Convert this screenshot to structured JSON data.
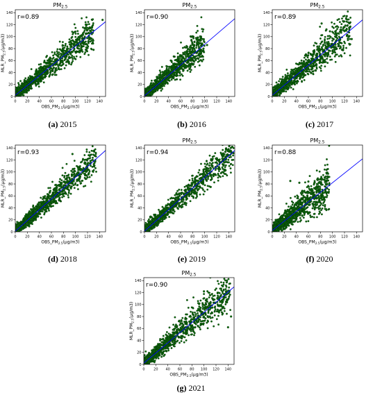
{
  "chart_data": [
    {
      "type": "scatter",
      "title": "PM2.5",
      "xlabel": "OBS_PM2.5(µg/m3)",
      "ylabel": "MLR_PM2.5(µg/m3)",
      "r_label": "r=0.89",
      "xlim": [
        0,
        150
      ],
      "ylim": [
        0,
        145
      ],
      "xticks": [
        0,
        20,
        40,
        60,
        80,
        100,
        120,
        140
      ],
      "yticks": [
        0,
        20,
        40,
        60,
        80,
        100,
        120,
        140
      ],
      "fit_line": {
        "slope": 0.82,
        "intercept": 2
      },
      "cloud": {
        "x_max": 130,
        "spread_low": 6,
        "spread_high": 22,
        "outliers": [
          [
            145,
            128
          ],
          [
            130,
            78
          ],
          [
            118,
            82
          ]
        ]
      },
      "caption_tag": "(a)",
      "caption_year": "2015",
      "point_color": "#0b6b0b",
      "line_color": "#0000ff"
    },
    {
      "type": "scatter",
      "title": "PM2.5",
      "xlabel": "OBS_PM2.5(µg/m3)",
      "ylabel": "MLR_PM2.5(µg/m3)",
      "r_label": "r=0.90",
      "xlim": [
        0,
        150
      ],
      "ylim": [
        0,
        145
      ],
      "xticks": [
        0,
        20,
        40,
        60,
        80,
        100,
        120,
        140
      ],
      "yticks": [
        0,
        20,
        40,
        60,
        80,
        100,
        120,
        140
      ],
      "fit_line": {
        "slope": 0.86,
        "intercept": 1
      },
      "cloud": {
        "x_max": 100,
        "spread_low": 5,
        "spread_high": 22,
        "outliers": [
          [
            104,
            86
          ],
          [
            98,
            80
          ]
        ]
      },
      "caption_tag": "(b)",
      "caption_year": "2016",
      "point_color": "#0b6b0b",
      "line_color": "#0000ff"
    },
    {
      "type": "scatter",
      "title": "PM2.5",
      "xlabel": "OBS_PM2.5(µg/m3)",
      "ylabel": "MLR_PM2.5(µg/m3)",
      "r_label": "r=0.89",
      "xlim": [
        0,
        150
      ],
      "ylim": [
        0,
        145
      ],
      "xticks": [
        0,
        20,
        40,
        60,
        80,
        100,
        120,
        140
      ],
      "yticks": [
        0,
        20,
        40,
        60,
        80,
        100,
        120,
        140
      ],
      "fit_line": {
        "slope": 0.84,
        "intercept": 2
      },
      "cloud": {
        "x_max": 130,
        "spread_low": 6,
        "spread_high": 24,
        "outliers": [
          [
            82,
            122
          ],
          [
            90,
            112
          ],
          [
            132,
            96
          ]
        ]
      },
      "caption_tag": "(c)",
      "caption_year": "2017",
      "point_color": "#0b6b0b",
      "line_color": "#0000ff"
    },
    {
      "type": "scatter",
      "title": "",
      "xlabel": "OBS_PM2.5(µg/m3)",
      "ylabel": "MLR_PM2.5(µg/m3)",
      "r_label": "r=0.93",
      "xlim": [
        0,
        150
      ],
      "ylim": [
        0,
        145
      ],
      "xticks": [
        0,
        20,
        40,
        60,
        80,
        100,
        120,
        140
      ],
      "yticks": [
        0,
        20,
        40,
        60,
        80,
        100,
        120,
        140
      ],
      "fit_line": {
        "slope": 0.9,
        "intercept": 1
      },
      "cloud": {
        "x_max": 135,
        "spread_low": 5,
        "spread_high": 20,
        "outliers": [
          [
            130,
            135
          ],
          [
            122,
            128
          ],
          [
            95,
            130
          ]
        ]
      },
      "caption_tag": "(d)",
      "caption_year": "2018",
      "point_color": "#0b6b0b",
      "line_color": "#0000ff"
    },
    {
      "type": "scatter",
      "title": "PM2.5",
      "xlabel": "OBS_PM2.5(µg/m3)",
      "ylabel": "MLR_PM2.5(µg/m3)",
      "r_label": "r=0.94",
      "xlim": [
        0,
        150
      ],
      "ylim": [
        0,
        145
      ],
      "xticks": [
        0,
        20,
        40,
        60,
        80,
        100,
        120,
        140
      ],
      "yticks": [
        0,
        20,
        40,
        60,
        80,
        100,
        120,
        140
      ],
      "fit_line": {
        "slope": 0.9,
        "intercept": 1
      },
      "cloud": {
        "x_max": 148,
        "spread_low": 5,
        "spread_high": 22,
        "outliers": [
          [
            146,
            142
          ],
          [
            140,
            136
          ],
          [
            110,
            75
          ]
        ]
      },
      "caption_tag": "(e)",
      "caption_year": "2019",
      "point_color": "#0b6b0b",
      "line_color": "#0000ff"
    },
    {
      "type": "scatter",
      "title": "PM2.5",
      "xlabel": "OBS_PM2.5(µg/m3)",
      "ylabel": "MLR_PM2.5(µg/m3)",
      "r_label": "r=0.88",
      "xlim": [
        0,
        150
      ],
      "ylim": [
        0,
        145
      ],
      "xticks": [
        0,
        20,
        40,
        60,
        80,
        100,
        120,
        140
      ],
      "yticks": [
        0,
        20,
        40,
        60,
        80,
        100,
        120,
        140
      ],
      "fit_line": {
        "slope": 0.8,
        "intercept": 2
      },
      "cloud": {
        "x_max": 95,
        "spread_low": 5,
        "spread_high": 30,
        "outliers": [
          [
            30,
            85
          ],
          [
            45,
            82
          ],
          [
            60,
            84
          ]
        ]
      },
      "caption_tag": "(f)",
      "caption_year": "2020",
      "point_color": "#0b6b0b",
      "line_color": "#0000ff"
    },
    {
      "type": "scatter",
      "title": "PM2.5",
      "xlabel": "OBS_PM2.5(µg/m3)",
      "ylabel": "MLR_PM2.5(µg/m3)",
      "r_label": "r=0.90",
      "xlim": [
        0,
        150
      ],
      "ylim": [
        0,
        145
      ],
      "xticks": [
        0,
        20,
        40,
        60,
        80,
        100,
        120,
        140
      ],
      "yticks": [
        0,
        20,
        40,
        60,
        80,
        100,
        120,
        140
      ],
      "fit_line": {
        "slope": 0.85,
        "intercept": 2
      },
      "cloud": {
        "x_max": 145,
        "spread_low": 6,
        "spread_high": 26,
        "outliers": [
          [
            145,
            80
          ],
          [
            140,
            62
          ],
          [
            100,
            122
          ]
        ]
      },
      "caption_tag": "(g)",
      "caption_year": "2021",
      "point_color": "#0b6b0b",
      "line_color": "#0000ff"
    }
  ]
}
